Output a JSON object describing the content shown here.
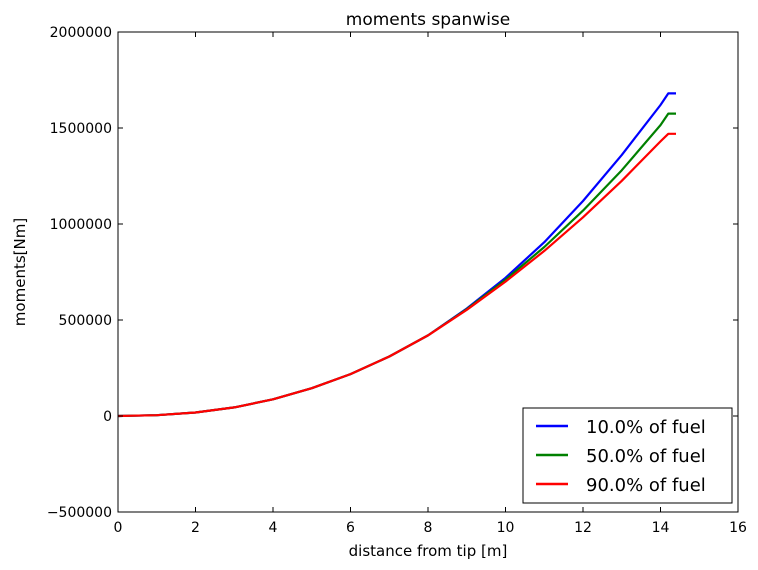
{
  "chart_data": {
    "type": "line",
    "title": "moments spanwise",
    "xlabel": "distance from tip [m]",
    "ylabel": "moments[Nm]",
    "xlim": [
      0,
      16
    ],
    "ylim": [
      -500000,
      2000000
    ],
    "xticks": [
      0,
      2,
      4,
      6,
      8,
      10,
      12,
      14,
      16
    ],
    "yticks": [
      -500000,
      0,
      500000,
      1000000,
      1500000,
      2000000
    ],
    "ytick_labels": [
      "−500000",
      "0",
      "500000",
      "1000000",
      "1500000",
      "2000000"
    ],
    "grid": false,
    "legend_position": "lower-right",
    "series": [
      {
        "name": "10.0% of fuel",
        "color": "#0000ff",
        "x": [
          0,
          1,
          2,
          3,
          4,
          5,
          6,
          7,
          8,
          9,
          10,
          11,
          12,
          13,
          14,
          14.2,
          14.4
        ],
        "y": [
          0,
          4000,
          18000,
          45000,
          87000,
          145000,
          218000,
          310000,
          420000,
          560000,
          720000,
          905000,
          1120000,
          1360000,
          1620000,
          1680000,
          1680000
        ]
      },
      {
        "name": "50.0% of fuel",
        "color": "#008000",
        "x": [
          0,
          1,
          2,
          3,
          4,
          5,
          6,
          7,
          8,
          9,
          10,
          11,
          12,
          13,
          14,
          14.2,
          14.4
        ],
        "y": [
          0,
          4000,
          18000,
          45000,
          87000,
          145000,
          218000,
          310000,
          420000,
          557000,
          710000,
          880000,
          1070000,
          1280000,
          1515000,
          1575000,
          1575000
        ]
      },
      {
        "name": "90.0% of fuel",
        "color": "#ff0000",
        "x": [
          0,
          1,
          2,
          3,
          4,
          5,
          6,
          7,
          8,
          9,
          10,
          11,
          12,
          13,
          14,
          14.2,
          14.4
        ],
        "y": [
          0,
          4000,
          18000,
          45000,
          87000,
          145000,
          218000,
          310000,
          420000,
          553000,
          700000,
          860000,
          1035000,
          1225000,
          1430000,
          1470000,
          1470000
        ]
      }
    ]
  }
}
